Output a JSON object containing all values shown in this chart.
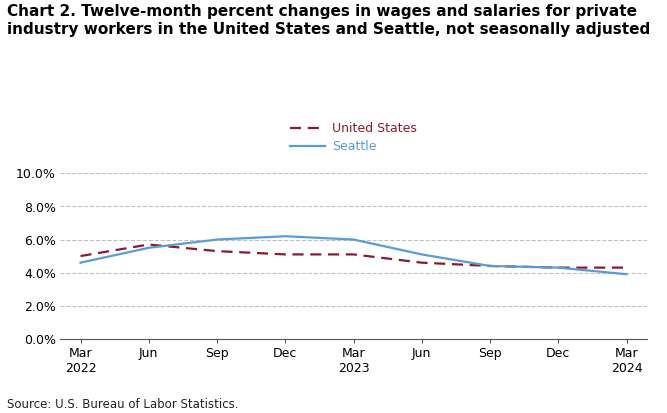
{
  "title": "Chart 2. Twelve-month percent changes in wages and salaries for private\nindustry workers in the United States and Seattle, not seasonally adjusted",
  "x_labels": [
    "Mar\n2022",
    "Jun",
    "Sep",
    "Dec",
    "Mar\n2023",
    "Jun",
    "Sep",
    "Dec",
    "Mar\n2024"
  ],
  "x_positions": [
    0,
    1,
    2,
    3,
    4,
    5,
    6,
    7,
    8
  ],
  "us_values": [
    5.0,
    5.7,
    5.3,
    5.1,
    5.1,
    4.6,
    4.4,
    4.3,
    4.3
  ],
  "seattle_values": [
    4.6,
    5.5,
    6.0,
    6.2,
    6.0,
    5.1,
    4.4,
    4.3,
    3.9
  ],
  "us_color": "#8B1A2E",
  "seattle_color": "#5B9BD5",
  "ylim": [
    0.0,
    10.0
  ],
  "yticks": [
    0.0,
    2.0,
    4.0,
    6.0,
    8.0,
    10.0
  ],
  "legend_us": "United States",
  "legend_seattle": "Seattle",
  "source": "Source: U.S. Bureau of Labor Statistics.",
  "background_color": "#ffffff",
  "grid_color": "#c0c0c0",
  "title_fontsize": 11,
  "axis_fontsize": 9,
  "legend_fontsize": 9,
  "source_fontsize": 8.5
}
